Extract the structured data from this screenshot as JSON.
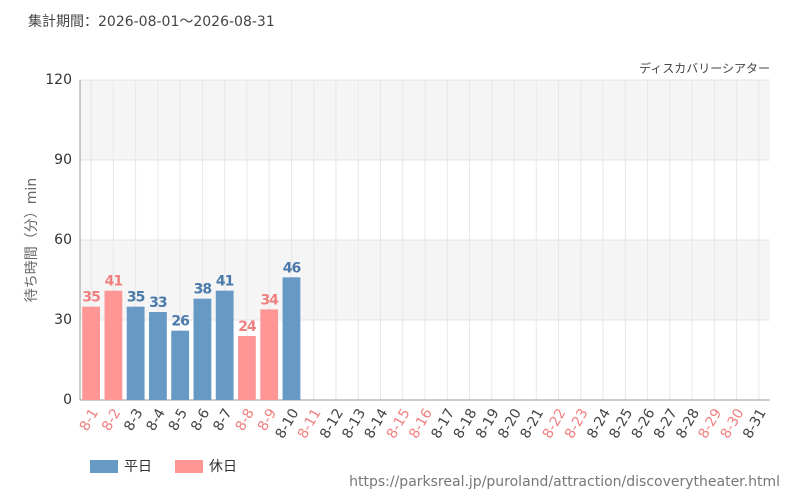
{
  "chart_data": {
    "type": "bar",
    "title": "集計期間：2026-08-01～2026-08-31",
    "subtitle": "ディスカバリーシアター",
    "y_label": "待ち時間（分）min",
    "source": "https://parksreal.jp/puroland/attraction/discoverytheater.html",
    "categories": [
      "8-1",
      "8-2",
      "8-3",
      "8-4",
      "8-5",
      "8-6",
      "8-7",
      "8-8",
      "8-9",
      "8-10",
      "8-11",
      "8-12",
      "8-13",
      "8-14",
      "8-15",
      "8-16",
      "8-17",
      "8-18",
      "8-19",
      "8-20",
      "8-21",
      "8-22",
      "8-23",
      "8-24",
      "8-25",
      "8-26",
      "8-27",
      "8-28",
      "8-29",
      "8-30",
      "8-31"
    ],
    "category_colors": [
      "#f08080",
      "#f08080",
      "#444444",
      "#444444",
      "#444444",
      "#444444",
      "#444444",
      "#f08080",
      "#f08080",
      "#444444",
      "#f08080",
      "#444444",
      "#444444",
      "#444444",
      "#f08080",
      "#f08080",
      "#444444",
      "#444444",
      "#444444",
      "#444444",
      "#444444",
      "#f08080",
      "#f08080",
      "#444444",
      "#444444",
      "#444444",
      "#444444",
      "#444444",
      "#f08080",
      "#f08080",
      "#444444"
    ],
    "series": [
      {
        "name": "平日",
        "color": "#6699c4",
        "label_color": "#4a7aaa",
        "values": [
          null,
          null,
          35,
          33,
          26,
          38,
          41,
          null,
          null,
          46,
          null,
          null,
          null,
          null,
          null,
          null,
          null,
          null,
          null,
          null,
          null,
          null,
          null,
          null,
          null,
          null,
          null,
          null,
          null,
          null,
          null
        ]
      },
      {
        "name": "休日",
        "color": "#ff9696",
        "label_color": "#f08080",
        "values": [
          35,
          41,
          null,
          null,
          null,
          null,
          null,
          24,
          34,
          null,
          null,
          null,
          null,
          null,
          null,
          null,
          null,
          null,
          null,
          null,
          null,
          null,
          null,
          null,
          null,
          null,
          null,
          null,
          null,
          null,
          null
        ]
      }
    ],
    "ylim": [
      0,
      120
    ],
    "yticks": [
      0,
      30,
      60,
      90,
      120
    ],
    "grid": true
  }
}
